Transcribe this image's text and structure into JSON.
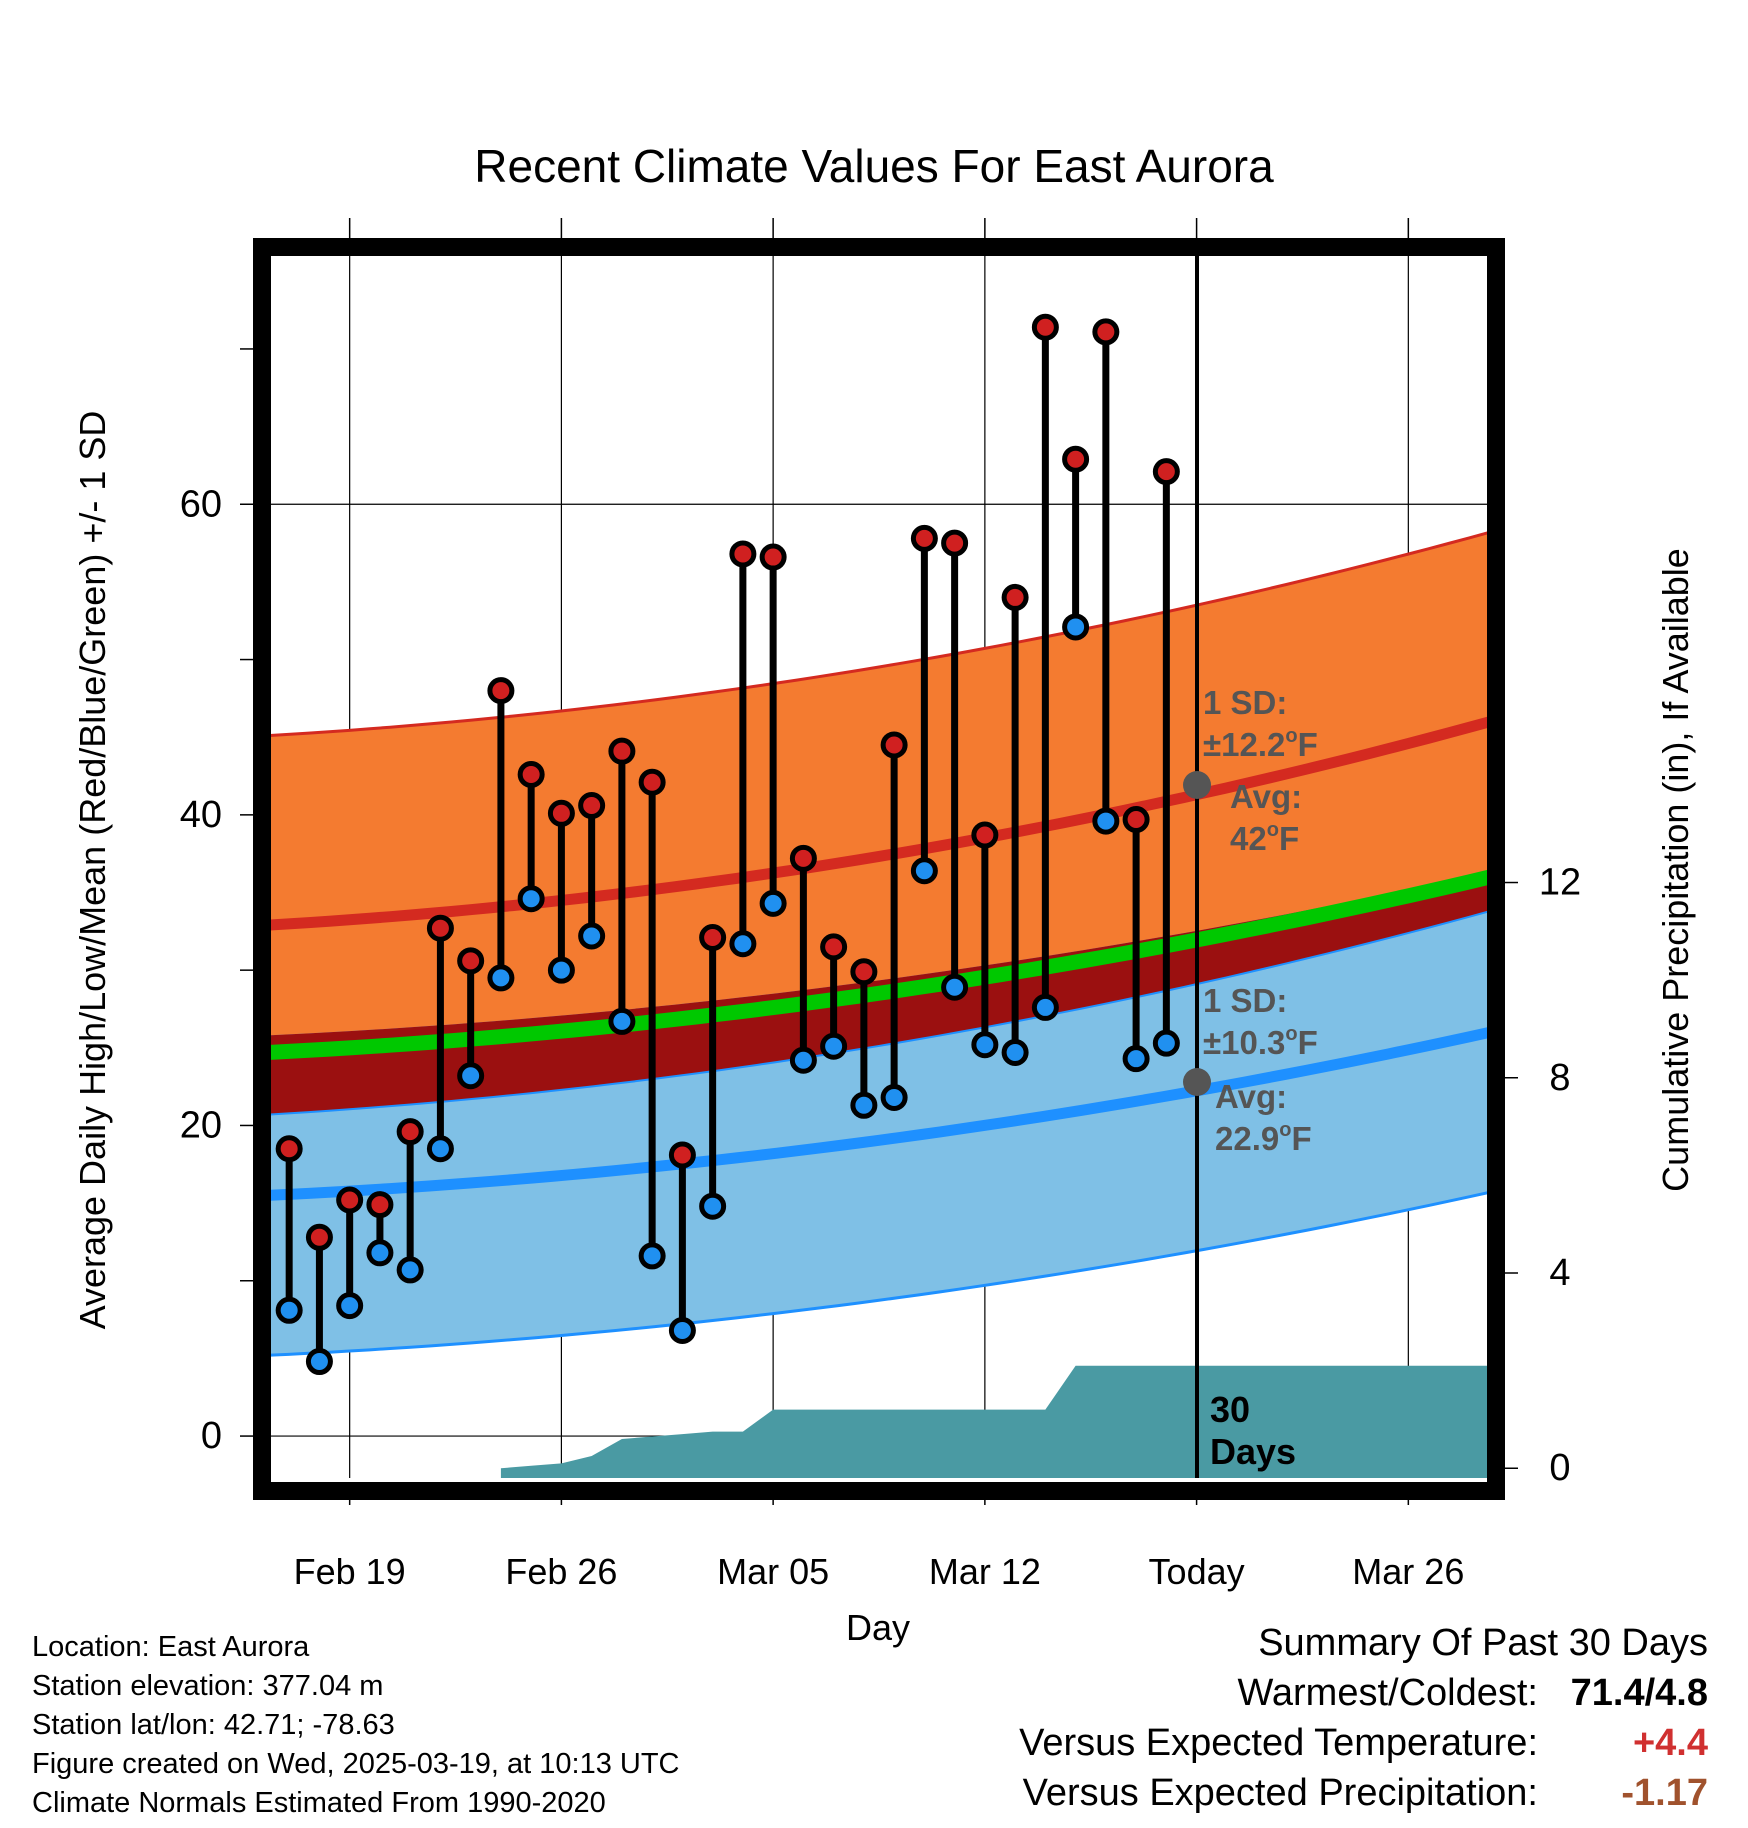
{
  "title": "Recent Climate Values For East Aurora",
  "xlabel": "Day",
  "ylabel_left": "Average Daily High/Low/Mean (Red/Blue/Green) +/- 1 SD",
  "ylabel_right": "Cumulative Precipitation (in), If Available",
  "high_annotation": {
    "sd_label": "1 SD:",
    "sd_value": "±12.2",
    "sd_unit": "F",
    "avg_label": "Avg:",
    "avg_value": "42",
    "avg_unit": "F"
  },
  "low_annotation": {
    "sd_label": "1 SD:",
    "sd_value": "±10.3",
    "sd_unit": "F",
    "avg_label": "Avg:",
    "avg_value": "22.9",
    "avg_unit": "F"
  },
  "days_label_1": "30",
  "days_label_2": "Days",
  "degree_mark": "o",
  "footer": {
    "location": "Location: East Aurora",
    "elevation": "Station elevation: 377.04 m",
    "latlon": "Station lat/lon: 42.71; -78.63",
    "created": "Figure created on Wed, 2025-03-19, at 10:13 UTC",
    "normals": "Climate Normals Estimated From 1990-2020"
  },
  "summary": {
    "heading": "Summary Of Past 30 Days",
    "warm_cold_label": "Warmest/Coldest:",
    "warm_cold_value": "71.4/4.8",
    "temp_label": "Versus Expected Temperature:",
    "temp_value": "+4.4",
    "precip_label": "Versus Expected Precipitation:",
    "precip_value": "-1.17"
  },
  "colors": {
    "high_band": "#f47b30",
    "high_line": "#d42a20",
    "low_band": "#7fc0e6",
    "low_line": "#1e90ff",
    "mean_band": "#9b1010",
    "mean_line": "#00c800",
    "precip": "#4a9aa3",
    "annotation": "#555555",
    "positive": "#d03030",
    "negative": "#a0522d"
  },
  "chart_data": {
    "type": "line",
    "title": "Recent Climate Values For East Aurora",
    "xlabel": "Day",
    "ylabel": "Average Daily High/Low/Mean (Red/Blue/Green) +/- 1 SD",
    "y2label": "Cumulative Precipitation (in), If Available",
    "x_tick_labels": [
      "Feb 19",
      "Feb 26",
      "Mar 05",
      "Mar 12",
      "Today",
      "Mar 26"
    ],
    "x_tick_days": [
      0,
      7,
      14,
      21,
      28,
      35
    ],
    "x_range_days": [
      -2.7,
      37.7
    ],
    "today_day": 28,
    "ylim": [
      -2.7,
      76.5
    ],
    "y_ticks": [
      0,
      20,
      40,
      60
    ],
    "y2lim": [
      -0.2,
      25.0
    ],
    "y2_ticks": [
      0,
      4,
      8,
      12
    ],
    "grid": true,
    "observed_days": [
      -2,
      -1,
      0,
      1,
      2,
      3,
      4,
      5,
      6,
      7,
      8,
      9,
      10,
      11,
      12,
      13,
      14,
      15,
      16,
      17,
      18,
      19,
      20,
      21,
      22,
      23,
      24,
      25,
      26,
      27
    ],
    "daily_high": [
      18.5,
      12.8,
      15.2,
      14.9,
      19.6,
      32.7,
      30.6,
      48.0,
      42.6,
      40.1,
      40.6,
      44.1,
      42.1,
      18.1,
      32.1,
      56.8,
      56.6,
      37.2,
      31.5,
      29.9,
      44.5,
      57.8,
      57.5,
      38.7,
      54.0,
      71.4,
      62.9,
      71.1,
      39.7,
      62.1
    ],
    "daily_low": [
      8.1,
      4.8,
      8.4,
      11.8,
      10.7,
      18.5,
      23.2,
      29.5,
      34.6,
      30.0,
      32.2,
      26.7,
      11.6,
      6.8,
      14.8,
      31.7,
      34.3,
      24.2,
      25.1,
      21.3,
      21.8,
      36.4,
      28.9,
      25.2,
      24.7,
      27.6,
      52.1,
      39.6,
      24.3,
      25.3
    ],
    "normal_high_start": 32.9,
    "normal_high_end": 46.0,
    "normal_high_sd": 12.2,
    "normal_mean_start": 24.7,
    "normal_mean_end": 36.0,
    "normal_low_start": 15.5,
    "normal_low_end": 26.0,
    "normal_low_sd": 10.3,
    "today_normal_high": 42,
    "today_normal_low": 22.9,
    "precip_days": [
      5,
      6,
      7,
      8,
      9,
      10,
      11,
      12,
      13,
      14,
      15,
      16,
      17,
      18,
      19,
      20,
      21,
      22,
      23,
      24,
      25,
      26,
      27,
      37.7
    ],
    "precip_cum": [
      0,
      0.05,
      0.1,
      0.25,
      0.6,
      0.65,
      0.7,
      0.75,
      0.75,
      1.2,
      1.2,
      1.2,
      1.2,
      1.2,
      1.2,
      1.2,
      1.2,
      1.2,
      1.2,
      2.1,
      2.1,
      2.1,
      2.1,
      2.1
    ]
  }
}
